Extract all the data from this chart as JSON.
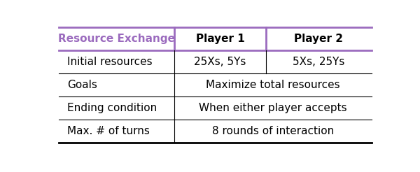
{
  "title_text": "Resource Exchange",
  "title_color": "#9B6BBE",
  "col_headers": [
    "Player 1",
    "Player 2"
  ],
  "rows": [
    {
      "label": "Initial resources",
      "col1": "25Xs, 5Ys",
      "col2": "5Xs, 25Ys",
      "span": false
    },
    {
      "label": "Goals",
      "col1": "Maximize total resources",
      "col2": null,
      "span": true
    },
    {
      "label": "Ending condition",
      "col1": "When either player accepts",
      "col2": null,
      "span": true
    },
    {
      "label": "Max. # of turns",
      "col1": "8 rounds of interaction",
      "col2": null,
      "span": true
    }
  ],
  "bg_color": "#ffffff",
  "line_color": "#000000",
  "header_line_color": "#9B6BBE",
  "text_color": "#000000",
  "font_size": 11,
  "header_font_size": 11
}
